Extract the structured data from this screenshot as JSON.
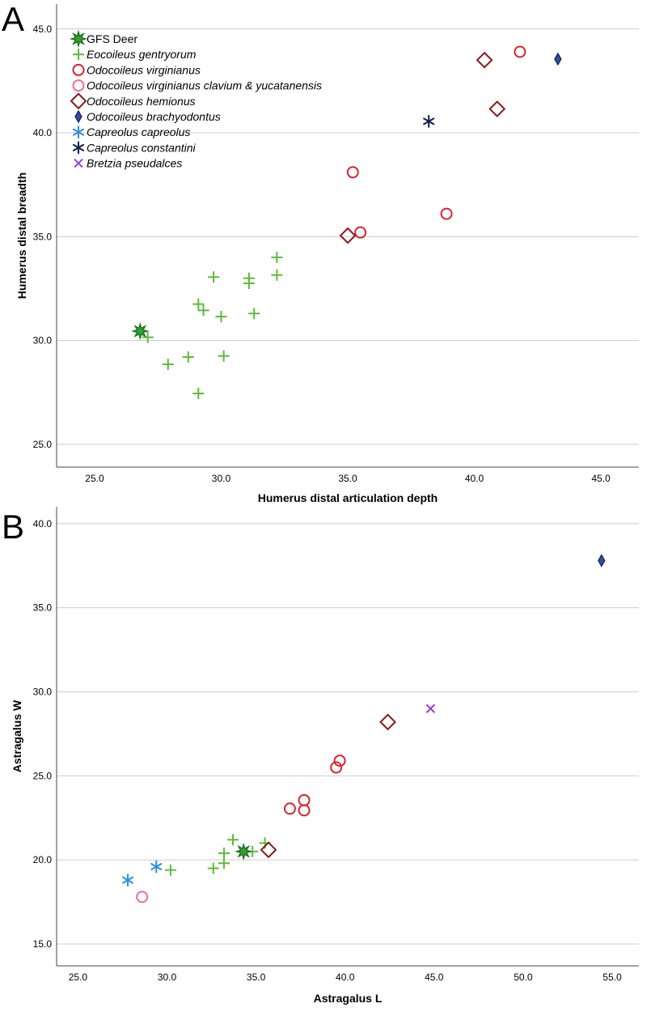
{
  "colors": {
    "gfs": "#2ea12e",
    "gfs_dark": "#1a6b1a",
    "gentryorum": "#5dbb3c",
    "virginianus": "#d9232f",
    "clavium": "#ee6b9a",
    "hemionus": "#8b1a1a",
    "brachyodontus_fill": "#2f4fa3",
    "brachyodontus_stroke": "#0d1d5a",
    "capreolus": "#2b8fe0",
    "constantini": "#10204f",
    "bretzia": "#9b3ee0",
    "grid": "#cccccc",
    "axis": "#444444"
  },
  "legend": [
    {
      "key": "gfs",
      "label": "GFS Deer",
      "italic": false
    },
    {
      "key": "gentryorum",
      "label": "Eocoileus gentryorum",
      "italic": true
    },
    {
      "key": "virginianus",
      "label": "Odocoileus virginianus",
      "italic": true
    },
    {
      "key": "clavium",
      "label": "Odocoileus virginianus clavium & yucatanensis",
      "italic": true
    },
    {
      "key": "hemionus",
      "label": "Odocoileus hemionus",
      "italic": true
    },
    {
      "key": "brachyodontus",
      "label": "Odocoileus brachyodontus",
      "italic": true
    },
    {
      "key": "capreolus",
      "label": "Capreolus capreolus",
      "italic": true
    },
    {
      "key": "constantini",
      "label": "Capreolus constantini",
      "italic": true
    },
    {
      "key": "bretzia",
      "label": "Bretzia pseudalces",
      "italic": true
    }
  ],
  "chart_data": [
    {
      "type": "scatter",
      "panel_label": "A",
      "xlabel": "Humerus distal articulation depth",
      "ylabel": "Humerus distal breadth",
      "xlim": [
        23.5,
        46.5
      ],
      "ylim": [
        23.9,
        46.2
      ],
      "xticks": [
        "25.0",
        "30.0",
        "35.0",
        "40.0",
        "45.0"
      ],
      "yticks": [
        "25.0",
        "30.0",
        "35.0",
        "40.0",
        "45.0"
      ],
      "grid": "horizontal",
      "legend_position": "top-left",
      "series": [
        {
          "key": "gfs",
          "points": [
            [
              26.8,
              30.45
            ]
          ]
        },
        {
          "key": "gentryorum",
          "points": [
            [
              27.1,
              30.15
            ],
            [
              27.9,
              28.85
            ],
            [
              28.7,
              29.2
            ],
            [
              29.1,
              27.45
            ],
            [
              29.1,
              31.75
            ],
            [
              29.3,
              31.45
            ],
            [
              29.7,
              33.05
            ],
            [
              30.0,
              31.15
            ],
            [
              30.1,
              29.25
            ],
            [
              31.1,
              33.0
            ],
            [
              31.1,
              32.75
            ],
            [
              31.3,
              31.3
            ],
            [
              32.2,
              34.0
            ],
            [
              32.2,
              33.15
            ]
          ]
        },
        {
          "key": "virginianus",
          "points": [
            [
              35.2,
              38.1
            ],
            [
              35.5,
              35.2
            ],
            [
              38.9,
              36.1
            ],
            [
              41.8,
              43.9
            ]
          ]
        },
        {
          "key": "hemionus",
          "points": [
            [
              35.0,
              35.05
            ],
            [
              40.4,
              43.5
            ],
            [
              40.9,
              41.15
            ]
          ]
        },
        {
          "key": "brachyodontus",
          "points": [
            [
              43.3,
              43.55
            ]
          ]
        },
        {
          "key": "constantini",
          "points": [
            [
              38.2,
              40.55
            ]
          ]
        }
      ]
    },
    {
      "type": "scatter",
      "panel_label": "B",
      "xlabel": "Astragalus L",
      "ylabel": "Astragalus W",
      "xlim": [
        23.8,
        56.5
      ],
      "ylim": [
        13.7,
        41.0
      ],
      "xticks": [
        "25.0",
        "30.0",
        "35.0",
        "40.0",
        "45.0",
        "50.0",
        "55.0"
      ],
      "yticks": [
        "15.0",
        "20.0",
        "25.0",
        "30.0",
        "35.0",
        "40.0"
      ],
      "grid": "horizontal",
      "legend_position": "none",
      "series": [
        {
          "key": "gfs",
          "points": [
            [
              34.3,
              20.5
            ]
          ]
        },
        {
          "key": "gentryorum",
          "points": [
            [
              30.2,
              19.4
            ],
            [
              32.6,
              19.5
            ],
            [
              33.2,
              19.8
            ],
            [
              33.2,
              20.4
            ],
            [
              33.7,
              21.2
            ],
            [
              34.8,
              20.5
            ],
            [
              35.5,
              21.0
            ]
          ]
        },
        {
          "key": "virginianus",
          "points": [
            [
              36.9,
              23.05
            ],
            [
              37.7,
              22.95
            ],
            [
              37.7,
              23.55
            ],
            [
              39.5,
              25.5
            ],
            [
              39.7,
              25.9
            ]
          ]
        },
        {
          "key": "clavium",
          "points": [
            [
              28.6,
              17.8
            ]
          ]
        },
        {
          "key": "hemionus",
          "points": [
            [
              35.7,
              20.6
            ],
            [
              42.4,
              28.2
            ]
          ]
        },
        {
          "key": "brachyodontus",
          "points": [
            [
              54.4,
              37.8
            ]
          ]
        },
        {
          "key": "capreolus",
          "points": [
            [
              27.8,
              18.8
            ],
            [
              29.4,
              19.6
            ]
          ]
        },
        {
          "key": "bretzia",
          "points": [
            [
              44.8,
              29.0
            ]
          ]
        }
      ]
    }
  ]
}
